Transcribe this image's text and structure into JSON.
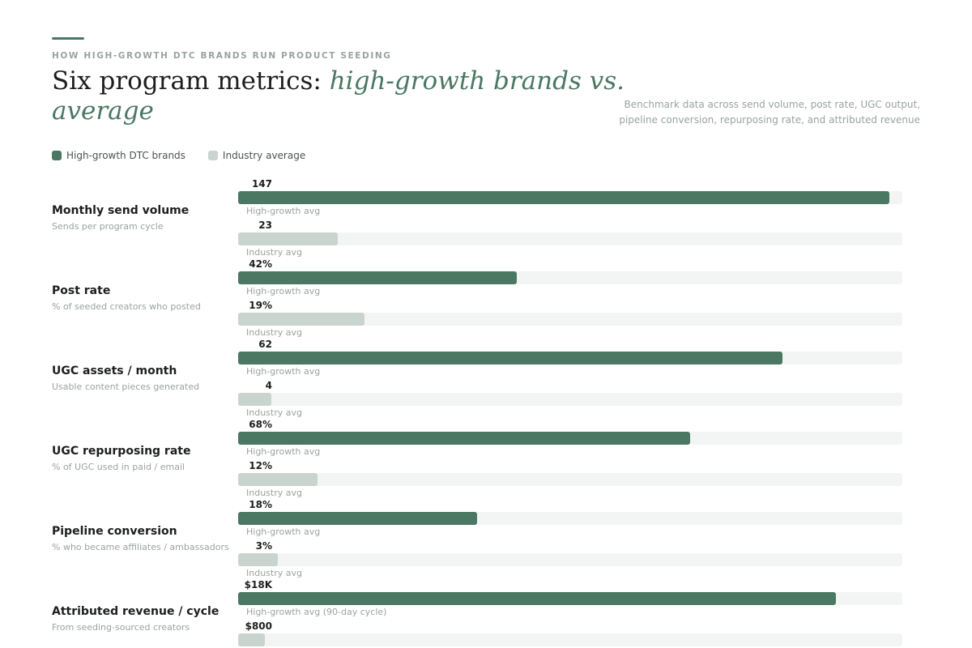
{
  "header": {
    "eyebrow": "HOW HIGH-GROWTH DTC BRANDS RUN PRODUCT SEEDING",
    "title_plain": "Six program metrics: ",
    "title_emphasis": "high-growth brands vs. average",
    "subtitle": "Benchmark data across send volume, post rate, UGC output, pipeline conversion, repurposing rate, and attributed revenue"
  },
  "colors": {
    "high_growth": "#4a7862",
    "industry": "#c9d4ce",
    "track": "#f3f5f4"
  },
  "chart_data": {
    "type": "bar",
    "orientation": "horizontal",
    "title": "Six program metrics: high-growth brands vs. average",
    "legend": [
      "High-growth DTC brands",
      "Industry average"
    ],
    "legend_position": "top-left",
    "grid": false,
    "metrics": [
      {
        "label": "Monthly send volume",
        "description": "Sends per program cycle",
        "high_growth": {
          "value": 147,
          "display": "147",
          "caption": "High-growth avg",
          "fill": 0.98
        },
        "industry": {
          "value": 23,
          "display": "23",
          "caption": "Industry avg",
          "fill": 0.15
        }
      },
      {
        "label": "Post rate",
        "description": "% of seeded creators who posted",
        "high_growth": {
          "value": 42,
          "display": "42%",
          "caption": "High-growth avg",
          "fill": 0.42
        },
        "industry": {
          "value": 19,
          "display": "19%",
          "caption": "Industry avg",
          "fill": 0.19
        }
      },
      {
        "label": "UGC assets / month",
        "description": "Usable content pieces generated",
        "high_growth": {
          "value": 62,
          "display": "62",
          "caption": "High-growth avg",
          "fill": 0.82
        },
        "industry": {
          "value": 4,
          "display": "4",
          "caption": "Industry avg",
          "fill": 0.05
        }
      },
      {
        "label": "UGC repurposing rate",
        "description": "% of UGC used in paid / email",
        "high_growth": {
          "value": 68,
          "display": "68%",
          "caption": "High-growth avg",
          "fill": 0.68
        },
        "industry": {
          "value": 12,
          "display": "12%",
          "caption": "Industry avg",
          "fill": 0.12
        }
      },
      {
        "label": "Pipeline conversion",
        "description": "% who became affiliates / ambassadors",
        "high_growth": {
          "value": 18,
          "display": "18%",
          "caption": "High-growth avg",
          "fill": 0.36
        },
        "industry": {
          "value": 3,
          "display": "3%",
          "caption": "Industry avg",
          "fill": 0.06
        }
      },
      {
        "label": "Attributed revenue / cycle",
        "description": "From seeding-sourced creators",
        "high_growth": {
          "value": 18000,
          "display": "$18K",
          "caption": "High-growth avg (90-day cycle)",
          "fill": 0.9
        },
        "industry": {
          "value": 800,
          "display": "$800",
          "caption": "",
          "fill": 0.04
        }
      }
    ]
  }
}
